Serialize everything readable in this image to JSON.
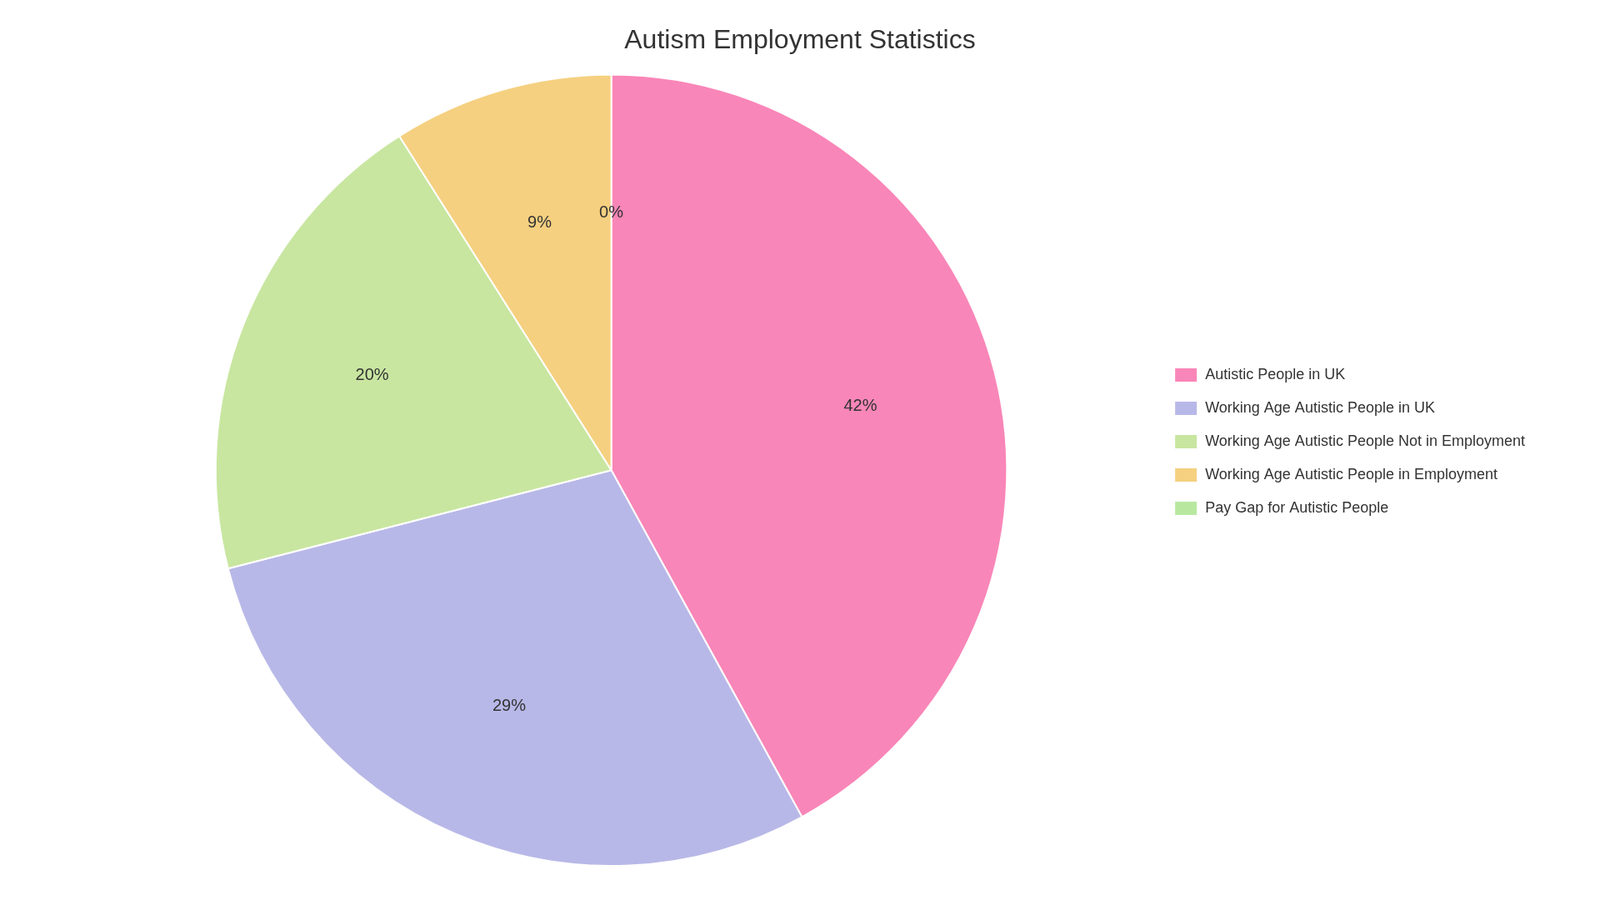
{
  "chart_data": {
    "type": "pie",
    "title": "Autism Employment Statistics",
    "categories": [
      "Autistic People in UK",
      "Working Age Autistic People in UK",
      "Working Age Autistic People Not in Employment",
      "Working Age Autistic People in Employment",
      "Pay Gap for Autistic People"
    ],
    "values": [
      42,
      29,
      20,
      9,
      0
    ],
    "value_labels": [
      "42%",
      "29%",
      "20%",
      "9%",
      "0%"
    ],
    "colors": [
      "#F986B8",
      "#B8B8E8",
      "#C8E6A0",
      "#F5D080",
      "#B8E8A0"
    ],
    "data_labels": true,
    "legend": "right"
  }
}
